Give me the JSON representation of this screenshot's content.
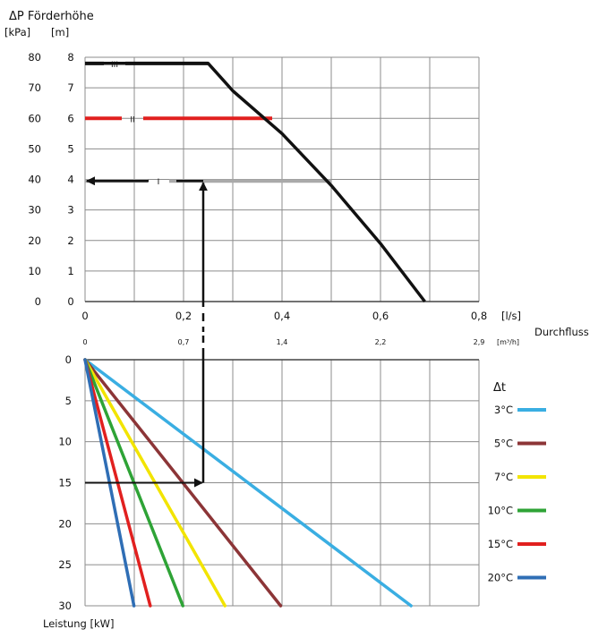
{
  "chart_data": [
    {
      "type": "line",
      "title": "ΔP  Förderhöhe",
      "y_units": [
        "[kPa]",
        "[m]"
      ],
      "y_ticks_kpa": [
        "80",
        "70",
        "60",
        "50",
        "40",
        "30",
        "20",
        "10",
        "0"
      ],
      "y_ticks_m": [
        "8",
        "7",
        "6",
        "5",
        "4",
        "3",
        "2",
        "1",
        "0"
      ],
      "x_ticks_ls": [
        "0",
        "0,2",
        "0,4",
        "0,6",
        "0,8"
      ],
      "x_unit_ls": "[l/s]",
      "x_ticks_m3h": [
        "0",
        "0,7",
        "1,4",
        "2,2",
        "2,9"
      ],
      "x_unit_m3h": "[m³/h]",
      "x_label": "Durchfluss",
      "xlim": [
        0,
        0.8
      ],
      "ylim": [
        0,
        8
      ],
      "pump_curve": {
        "x": [
          0,
          0.25,
          0.3,
          0.4,
          0.5,
          0.6,
          0.69
        ],
        "y": [
          7.8,
          7.8,
          6.9,
          5.5,
          3.8,
          1.9,
          0
        ]
      },
      "speed_levels": [
        {
          "name": "III",
          "y": 7.8,
          "x_end": 0.25,
          "color": "#111111"
        },
        {
          "name": "II",
          "y": 6.0,
          "x_end": 0.38,
          "color": "#e1201f"
        },
        {
          "name": "I",
          "y": 3.95,
          "x_end": 0.5,
          "color": "#aaaaaa"
        }
      ]
    },
    {
      "type": "line",
      "y_ticks": [
        "0",
        "5",
        "10",
        "15",
        "20",
        "25",
        "30"
      ],
      "ylim": [
        0,
        30
      ],
      "y_label": "Leistung [kW]",
      "legend_title": "Δt",
      "legend_position": "right",
      "series": [
        {
          "name": "3°C",
          "color": "#3aaee2",
          "x_at_30kW": 2.4
        },
        {
          "name": "5°C",
          "color": "#8c3537",
          "x_at_30kW": 1.44
        },
        {
          "name": "7°C",
          "color": "#f2e400",
          "x_at_30kW": 1.03
        },
        {
          "name": "10°C",
          "color": "#2ea336",
          "x_at_30kW": 0.72
        },
        {
          "name": "15°C",
          "color": "#e1201f",
          "x_at_30kW": 0.48
        },
        {
          "name": "20°C",
          "color": "#2f6eb5",
          "x_at_30kW": 0.36
        }
      ]
    }
  ],
  "example": {
    "flow_ls": 0.24,
    "power_kw": 15,
    "dt": "15°C",
    "pressure_m": 3.95
  }
}
